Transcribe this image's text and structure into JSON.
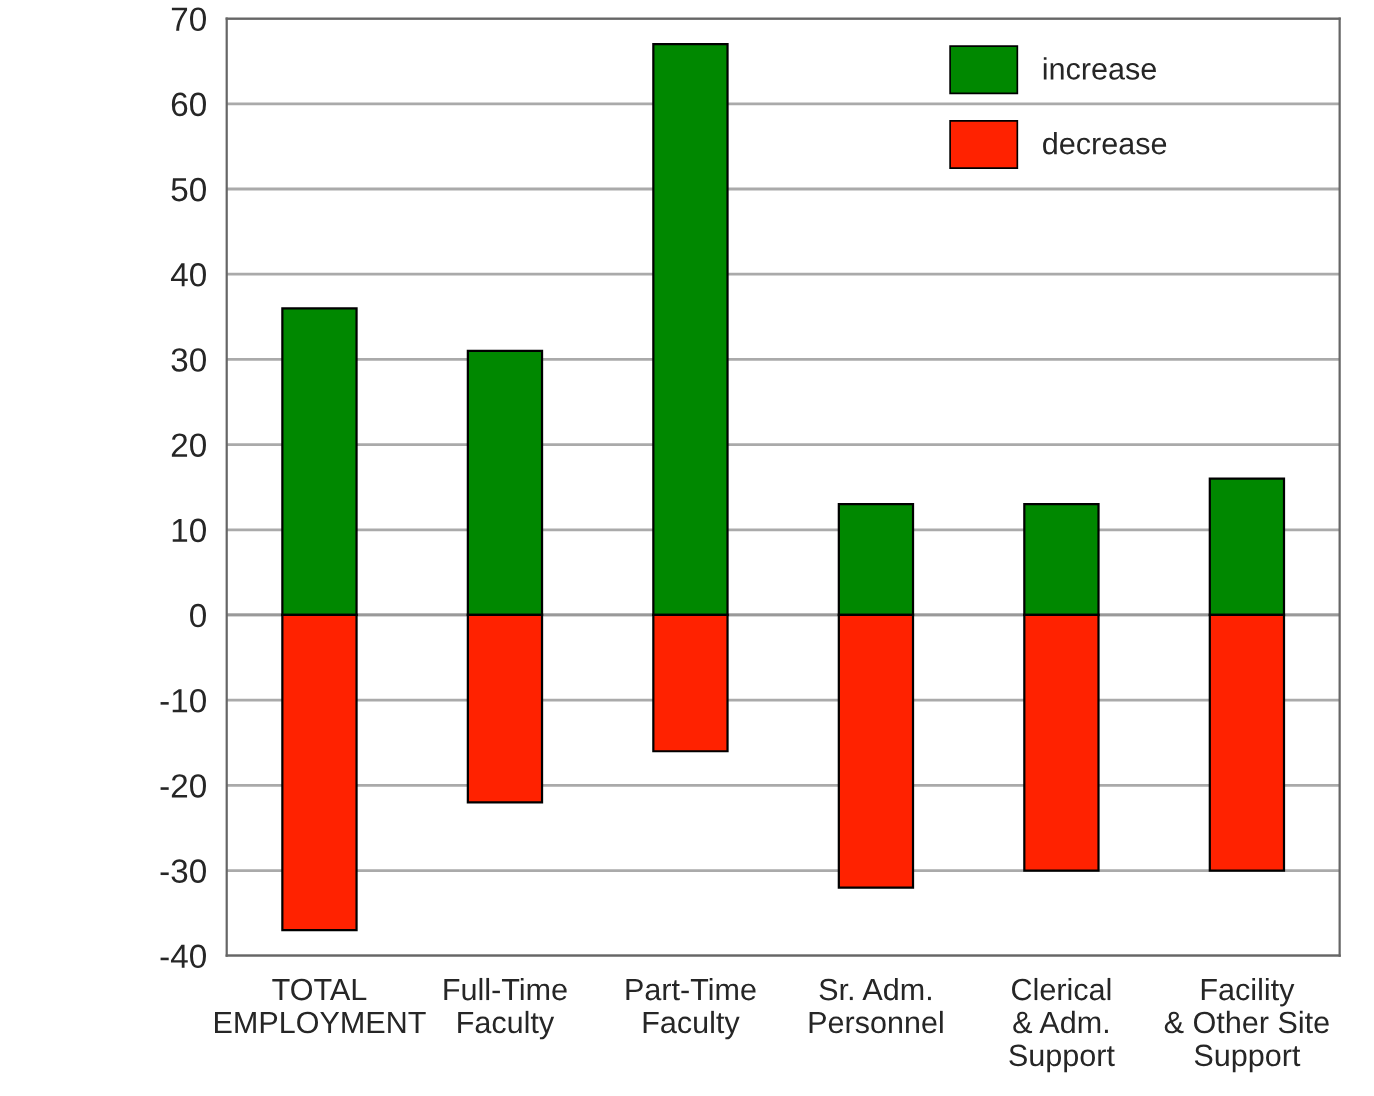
{
  "chart_data": {
    "type": "bar",
    "stacked": true,
    "categories": [
      "TOTAL\nEMPLOYMENT",
      "Full-Time\nFaculty",
      "Part-Time\nFaculty",
      "Sr. Adm.\nPersonnel",
      "Clerical\n& Adm.\nSupport",
      "Facility\n& Other Site\nSupport"
    ],
    "series": [
      {
        "name": "increase",
        "color": "#008800",
        "values": [
          36,
          31,
          67,
          13,
          13,
          16
        ]
      },
      {
        "name": "decrease",
        "color": "#ff2200",
        "values": [
          -37,
          -22,
          -16,
          -32,
          -30,
          -30
        ]
      }
    ],
    "ylim": [
      -40,
      70
    ],
    "yticks": [
      -40,
      -30,
      -20,
      -10,
      0,
      10,
      20,
      30,
      40,
      50,
      60,
      70
    ],
    "grid": "y",
    "legend": "top right"
  }
}
